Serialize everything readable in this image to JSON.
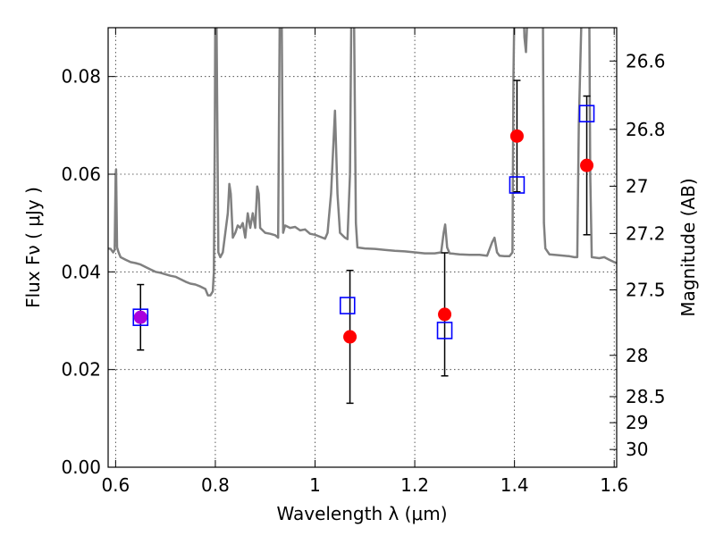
{
  "chart_data": {
    "type": "scatter",
    "title": "",
    "xlabel": "Wavelength  λ (μm)",
    "ylabel": "Flux  Fν  ( μJy )",
    "y2label": "Magnitude (AB)",
    "xlim": [
      0.585,
      1.605
    ],
    "ylim": [
      0.0,
      0.09
    ],
    "grid": true,
    "x_ticks": [
      {
        "value": 0.6,
        "label": "0.6"
      },
      {
        "value": 0.8,
        "label": "0.8"
      },
      {
        "value": 1.0,
        "label": "1"
      },
      {
        "value": 1.2,
        "label": "1.2"
      },
      {
        "value": 1.4,
        "label": "1.4"
      },
      {
        "value": 1.6,
        "label": "1.6"
      }
    ],
    "y_ticks": [
      {
        "value": 0.0,
        "label": "0.00"
      },
      {
        "value": 0.02,
        "label": "0.02"
      },
      {
        "value": 0.04,
        "label": "0.04"
      },
      {
        "value": 0.06,
        "label": "0.06"
      },
      {
        "value": 0.08,
        "label": "0.08"
      }
    ],
    "mag_ticks": [
      {
        "mag": 26.6,
        "label": "26.6"
      },
      {
        "mag": 26.8,
        "label": "26.8"
      },
      {
        "mag": 27.0,
        "label": "27"
      },
      {
        "mag": 27.2,
        "label": "27.2"
      },
      {
        "mag": 27.5,
        "label": "27.5"
      },
      {
        "mag": 28.0,
        "label": "28"
      },
      {
        "mag": 28.5,
        "label": "28.5"
      },
      {
        "mag": 29.0,
        "label": "29"
      },
      {
        "mag": 30.0,
        "label": "30"
      }
    ],
    "observed": {
      "color": "#ff0000",
      "points": [
        {
          "x": 0.65,
          "y": 0.0307,
          "err": 0.0067
        },
        {
          "x": 1.07,
          "y": 0.0267,
          "err": 0.0136
        },
        {
          "x": 1.26,
          "y": 0.0313,
          "err": 0.0126
        },
        {
          "x": 1.405,
          "y": 0.0678,
          "err": 0.0114
        },
        {
          "x": 1.545,
          "y": 0.0618,
          "err": 0.0142
        }
      ]
    },
    "model_points": {
      "color": "#0000ff",
      "points": [
        {
          "x": 0.65,
          "y": 0.0307
        },
        {
          "x": 1.065,
          "y": 0.0331
        },
        {
          "x": 1.26,
          "y": 0.028
        },
        {
          "x": 1.405,
          "y": 0.0578
        },
        {
          "x": 1.545,
          "y": 0.0724
        }
      ]
    },
    "overlap_color": "#aa00dd",
    "spectrum": {
      "color": "#808080",
      "points": [
        [
          0.585,
          0.0448
        ],
        [
          0.59,
          0.0447
        ],
        [
          0.595,
          0.044
        ],
        [
          0.598,
          0.0445
        ],
        [
          0.6,
          0.06
        ],
        [
          0.601,
          0.061
        ],
        [
          0.603,
          0.045
        ],
        [
          0.606,
          0.044
        ],
        [
          0.61,
          0.043
        ],
        [
          0.62,
          0.0425
        ],
        [
          0.63,
          0.042
        ],
        [
          0.64,
          0.0418
        ],
        [
          0.65,
          0.0415
        ],
        [
          0.66,
          0.041
        ],
        [
          0.67,
          0.0405
        ],
        [
          0.68,
          0.04
        ],
        [
          0.69,
          0.0398
        ],
        [
          0.7,
          0.0395
        ],
        [
          0.71,
          0.0392
        ],
        [
          0.72,
          0.039
        ],
        [
          0.73,
          0.0385
        ],
        [
          0.74,
          0.038
        ],
        [
          0.75,
          0.0376
        ],
        [
          0.76,
          0.0374
        ],
        [
          0.77,
          0.037
        ],
        [
          0.78,
          0.0365
        ],
        [
          0.785,
          0.0352
        ],
        [
          0.79,
          0.0352
        ],
        [
          0.795,
          0.036
        ],
        [
          0.797,
          0.04
        ],
        [
          0.799,
          0.07
        ],
        [
          0.8,
          0.095
        ],
        [
          0.802,
          0.095
        ],
        [
          0.804,
          0.07
        ],
        [
          0.806,
          0.044
        ],
        [
          0.81,
          0.043
        ],
        [
          0.815,
          0.044
        ],
        [
          0.82,
          0.048
        ],
        [
          0.825,
          0.052
        ],
        [
          0.828,
          0.058
        ],
        [
          0.831,
          0.056
        ],
        [
          0.835,
          0.047
        ],
        [
          0.84,
          0.048
        ],
        [
          0.845,
          0.0495
        ],
        [
          0.85,
          0.049
        ],
        [
          0.855,
          0.05
        ],
        [
          0.86,
          0.047
        ],
        [
          0.865,
          0.052
        ],
        [
          0.87,
          0.049
        ],
        [
          0.875,
          0.052
        ],
        [
          0.88,
          0.049
        ],
        [
          0.884,
          0.0575
        ],
        [
          0.887,
          0.056
        ],
        [
          0.89,
          0.049
        ],
        [
          0.9,
          0.048
        ],
        [
          0.91,
          0.0478
        ],
        [
          0.92,
          0.0475
        ],
        [
          0.926,
          0.047
        ],
        [
          0.929,
          0.09
        ],
        [
          0.933,
          0.095
        ],
        [
          0.936,
          0.048
        ],
        [
          0.94,
          0.0495
        ],
        [
          0.95,
          0.049
        ],
        [
          0.96,
          0.0492
        ],
        [
          0.97,
          0.0485
        ],
        [
          0.98,
          0.0487
        ],
        [
          0.99,
          0.0478
        ],
        [
          1.0,
          0.0476
        ],
        [
          1.01,
          0.0472
        ],
        [
          1.02,
          0.0468
        ],
        [
          1.025,
          0.048
        ],
        [
          1.032,
          0.056
        ],
        [
          1.04,
          0.073
        ],
        [
          1.045,
          0.056
        ],
        [
          1.05,
          0.048
        ],
        [
          1.06,
          0.047
        ],
        [
          1.065,
          0.0467
        ],
        [
          1.07,
          0.06
        ],
        [
          1.073,
          0.095
        ],
        [
          1.078,
          0.095
        ],
        [
          1.082,
          0.05
        ],
        [
          1.085,
          0.045
        ],
        [
          1.1,
          0.0448
        ],
        [
          1.12,
          0.0447
        ],
        [
          1.14,
          0.0445
        ],
        [
          1.16,
          0.0443
        ],
        [
          1.18,
          0.0442
        ],
        [
          1.2,
          0.044
        ],
        [
          1.22,
          0.0438
        ],
        [
          1.24,
          0.0438
        ],
        [
          1.253,
          0.044
        ],
        [
          1.258,
          0.048
        ],
        [
          1.261,
          0.0497
        ],
        [
          1.265,
          0.045
        ],
        [
          1.27,
          0.0438
        ],
        [
          1.29,
          0.0436
        ],
        [
          1.31,
          0.0435
        ],
        [
          1.33,
          0.0435
        ],
        [
          1.345,
          0.0433
        ],
        [
          1.355,
          0.046
        ],
        [
          1.36,
          0.047
        ],
        [
          1.365,
          0.044
        ],
        [
          1.37,
          0.0433
        ],
        [
          1.38,
          0.0432
        ],
        [
          1.39,
          0.0432
        ],
        [
          1.396,
          0.044
        ],
        [
          1.398,
          0.08
        ],
        [
          1.4,
          0.095
        ],
        [
          1.403,
          0.095
        ],
        [
          1.41,
          0.095
        ],
        [
          1.418,
          0.095
        ],
        [
          1.42,
          0.088
        ],
        [
          1.423,
          0.085
        ],
        [
          1.427,
          0.095
        ],
        [
          1.45,
          0.095
        ],
        [
          1.457,
          0.095
        ],
        [
          1.459,
          0.05
        ],
        [
          1.462,
          0.0448
        ],
        [
          1.47,
          0.0436
        ],
        [
          1.49,
          0.0434
        ],
        [
          1.51,
          0.0432
        ],
        [
          1.52,
          0.043
        ],
        [
          1.526,
          0.043
        ],
        [
          1.529,
          0.07
        ],
        [
          1.535,
          0.095
        ],
        [
          1.545,
          0.095
        ],
        [
          1.55,
          0.095
        ],
        [
          1.552,
          0.06
        ],
        [
          1.555,
          0.043
        ],
        [
          1.57,
          0.0428
        ],
        [
          1.58,
          0.043
        ],
        [
          1.59,
          0.0425
        ],
        [
          1.6,
          0.042
        ],
        [
          1.605,
          0.0418
        ]
      ]
    }
  }
}
